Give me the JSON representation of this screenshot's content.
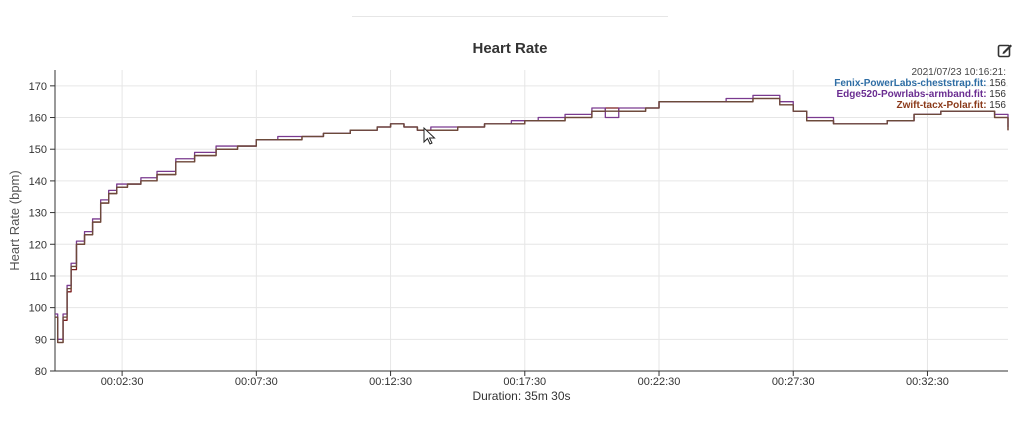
{
  "chart_data": {
    "type": "line",
    "title": "Heart Rate",
    "ylabel": "Heart Rate (bpm)",
    "xlabel": "Duration: 35m 30s",
    "ylim": [
      80,
      175
    ],
    "yticks": [
      80,
      90,
      100,
      110,
      120,
      130,
      140,
      150,
      160,
      170
    ],
    "x_unit": "minutes",
    "xlim": [
      0,
      35.5
    ],
    "xticks": [
      {
        "value": 2.5,
        "label": "00:02:30"
      },
      {
        "value": 7.5,
        "label": "00:07:30"
      },
      {
        "value": 12.5,
        "label": "00:12:30"
      },
      {
        "value": 17.5,
        "label": "00:17:30"
      },
      {
        "value": 22.5,
        "label": "00:22:30"
      },
      {
        "value": 27.5,
        "label": "00:27:30"
      },
      {
        "value": 32.5,
        "label": "00:32:30"
      }
    ],
    "grid": true,
    "legend_position": "top-right",
    "tooltip": {
      "timestamp": "2021/07/23 10:16:21:",
      "rows": [
        {
          "label": "Fenix-PowerLabs-cheststrap.fit:",
          "value": "156"
        },
        {
          "label": "Edge520-Powrlabs-armband.fit:",
          "value": "156"
        },
        {
          "label": "Zwift-tacx-Polar.fit:",
          "value": "156"
        }
      ]
    },
    "x": [
      0,
      0.1,
      0.3,
      0.45,
      0.6,
      0.8,
      1.1,
      1.4,
      1.7,
      2.0,
      2.3,
      2.7,
      3.2,
      3.8,
      4.5,
      5.2,
      6.0,
      6.8,
      7.5,
      8.3,
      9.2,
      10.0,
      11.0,
      12.0,
      12.5,
      13.0,
      13.5,
      14.0,
      15.0,
      16.0,
      17.0,
      17.5,
      18.0,
      19.0,
      20.0,
      20.5,
      21.0,
      22.0,
      22.5,
      23.0,
      24.0,
      25.0,
      26.0,
      26.5,
      27.0,
      27.5,
      28.0,
      29.0,
      30.0,
      31.0,
      32.0,
      33.0,
      34.0,
      35.0,
      35.5
    ],
    "series": [
      {
        "name": "Fenix-PowerLabs-cheststrap.fit",
        "color": "#7b1f1f",
        "values": [
          97,
          89,
          96,
          105,
          112,
          120,
          123,
          127,
          133,
          136,
          138,
          139,
          140,
          142,
          146,
          148,
          150,
          151,
          153,
          153,
          154,
          155,
          156,
          157,
          158,
          157,
          156,
          156,
          157,
          158,
          158,
          159,
          159,
          160,
          162,
          163,
          162,
          163,
          165,
          165,
          165,
          165,
          166,
          166,
          164,
          162,
          159,
          158,
          158,
          159,
          161,
          162,
          162,
          160,
          156
        ]
      },
      {
        "name": "Edge520-Powrlabs-armband.fit",
        "color": "#7a3a8f",
        "values": [
          98,
          90,
          98,
          107,
          114,
          121,
          124,
          128,
          134,
          137,
          139,
          139,
          141,
          143,
          147,
          149,
          151,
          151,
          153,
          154,
          154,
          155,
          156,
          157,
          158,
          157,
          156,
          157,
          157,
          158,
          159,
          159,
          160,
          161,
          163,
          160,
          163,
          163,
          165,
          165,
          165,
          166,
          167,
          167,
          165,
          162,
          160,
          158,
          158,
          159,
          161,
          162,
          162,
          161,
          157
        ]
      },
      {
        "name": "Zwift-tacx-Polar.fit",
        "color": "#6b4a3a",
        "values": [
          97,
          89,
          97,
          106,
          113,
          120,
          123,
          127,
          133,
          136,
          138,
          139,
          140,
          142,
          146,
          148,
          150,
          151,
          153,
          153,
          154,
          155,
          156,
          157,
          158,
          157,
          156,
          156,
          157,
          158,
          158,
          159,
          159,
          160,
          162,
          162,
          162,
          163,
          165,
          165,
          165,
          165,
          166,
          166,
          164,
          162,
          159,
          158,
          158,
          159,
          161,
          162,
          162,
          160,
          156
        ]
      }
    ],
    "colors": {
      "tooltip_fenix": "#2e6da4",
      "tooltip_edge": "#6a2d91",
      "tooltip_zwift": "#8b3a1a",
      "grid": "#e6e6e6",
      "axis": "#333333"
    }
  }
}
